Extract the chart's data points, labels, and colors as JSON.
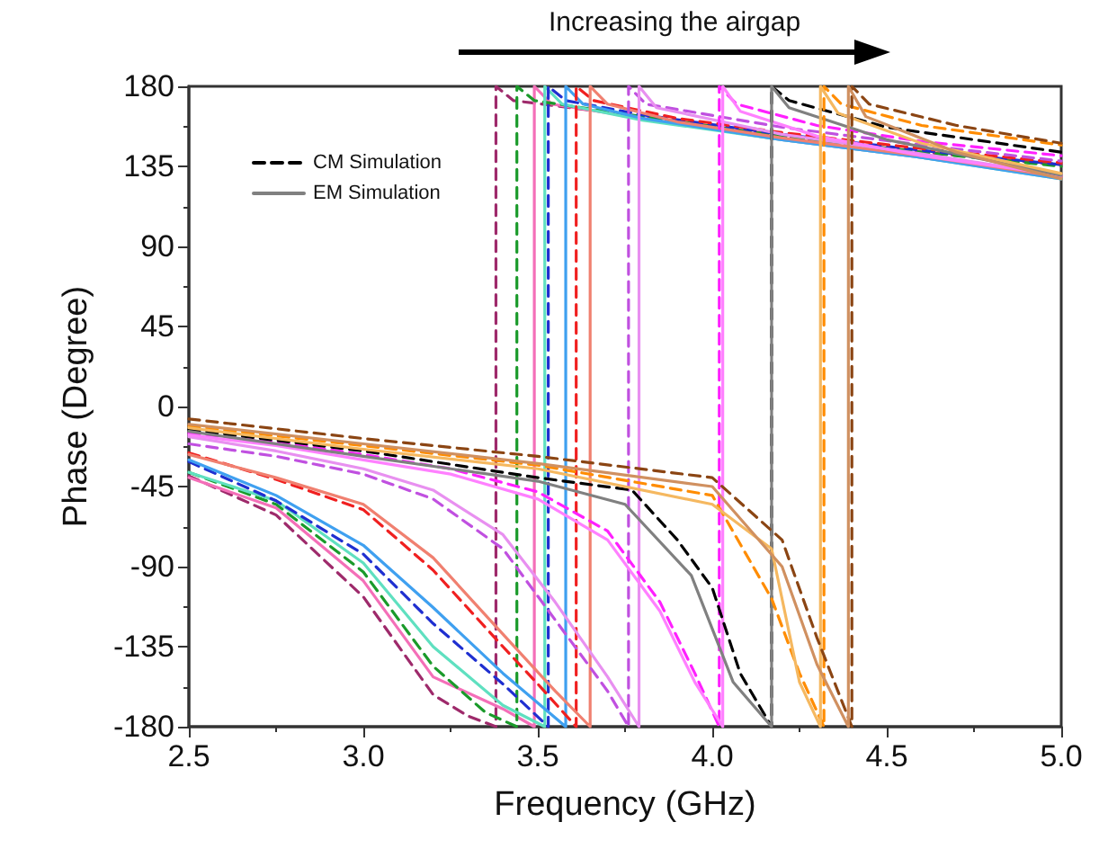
{
  "chart_data": {
    "type": "line",
    "xlabel": "Frequency (GHz)",
    "ylabel": "Phase (Degree)",
    "annotations": [
      "Increasing the airgap"
    ],
    "xlim": [
      2.5,
      5
    ],
    "xticks": [
      2.5,
      {
        "value": 3,
        "label": "3.0"
      },
      3.5,
      {
        "value": 4,
        "label": "4.0"
      },
      4.5,
      {
        "value": 5,
        "label": "5.0"
      }
    ],
    "ylim": [
      -180,
      180
    ],
    "yticks": [
      -180,
      -135,
      -90,
      -45,
      0,
      45,
      90,
      135,
      180
    ],
    "grid": false,
    "legend": "top left",
    "marker": "none",
    "series": [
      {
        "color": "#9e2a6b",
        "line_style": "dashed",
        "x": [
          2.5,
          2.75,
          3.0,
          3.2,
          3.3,
          3.38,
          3.38,
          3.43,
          3.8,
          4.2,
          4.6,
          5.0
        ],
        "values": [
          -39,
          -61,
          -107,
          -162,
          -174,
          -180,
          180,
          172,
          163,
          152,
          143,
          136
        ]
      },
      {
        "color": "#f46fb8",
        "line_style": "solid",
        "x": [
          2.5,
          2.75,
          3.0,
          3.2,
          3.4,
          3.49,
          3.49,
          3.54,
          3.8,
          4.2,
          4.6,
          5.0
        ],
        "values": [
          -40,
          -57,
          -98,
          -152,
          -170,
          -180,
          180,
          170,
          162,
          150,
          140,
          129
        ]
      },
      {
        "color": "#1a9a2a",
        "line_style": "dashed",
        "x": [
          2.5,
          2.75,
          3.0,
          3.2,
          3.35,
          3.44,
          3.44,
          3.49,
          3.8,
          4.2,
          4.6,
          5.0
        ],
        "values": [
          -37,
          -55,
          -93,
          -146,
          -172,
          -180,
          180,
          172,
          163,
          152,
          143,
          135
        ]
      },
      {
        "color": "#5fe0c0",
        "line_style": "solid",
        "x": [
          2.5,
          2.75,
          3.0,
          3.2,
          3.4,
          3.52,
          3.52,
          3.57,
          3.8,
          4.2,
          4.6,
          5.0
        ],
        "values": [
          -37,
          -53,
          -88,
          -135,
          -168,
          -180,
          180,
          170,
          161,
          150,
          140,
          128
        ]
      },
      {
        "color": "#1f2fd0",
        "line_style": "dashed",
        "x": [
          2.5,
          2.75,
          3.0,
          3.2,
          3.4,
          3.53,
          3.53,
          3.58,
          3.8,
          4.2,
          4.6,
          5.0
        ],
        "values": [
          -31,
          -53,
          -83,
          -122,
          -156,
          -180,
          180,
          172,
          164,
          153,
          144,
          136
        ]
      },
      {
        "color": "#3fa0f0",
        "line_style": "solid",
        "x": [
          2.5,
          2.75,
          3.0,
          3.2,
          3.4,
          3.58,
          3.58,
          3.63,
          3.8,
          4.2,
          4.6,
          5.0
        ],
        "values": [
          -30,
          -50,
          -78,
          -113,
          -150,
          -180,
          180,
          170,
          162,
          150,
          140,
          128
        ]
      },
      {
        "color": "#f02020",
        "line_style": "dashed",
        "x": [
          2.5,
          2.75,
          3.0,
          3.2,
          3.4,
          3.5,
          3.61,
          3.61,
          3.66,
          3.9,
          4.2,
          4.6,
          5.0
        ],
        "values": [
          -26,
          -41,
          -58,
          -92,
          -135,
          -156,
          -180,
          180,
          172,
          162,
          154,
          145,
          137
        ]
      },
      {
        "color": "#f08070",
        "line_style": "solid",
        "x": [
          2.5,
          2.75,
          3.0,
          3.2,
          3.4,
          3.55,
          3.65,
          3.65,
          3.7,
          3.9,
          4.2,
          4.6,
          5.0
        ],
        "values": [
          -27,
          -40,
          -55,
          -85,
          -128,
          -160,
          -180,
          180,
          170,
          160,
          151,
          141,
          129
        ]
      },
      {
        "color": "#c050e0",
        "line_style": "dashed",
        "x": [
          2.5,
          2.75,
          3.0,
          3.2,
          3.4,
          3.55,
          3.7,
          3.76,
          3.76,
          3.81,
          4.2,
          4.6,
          5.0
        ],
        "values": [
          -21,
          -28,
          -38,
          -52,
          -80,
          -120,
          -160,
          -180,
          180,
          170,
          157,
          147,
          138
        ]
      },
      {
        "color": "#e890f0",
        "line_style": "solid",
        "x": [
          2.5,
          2.75,
          3.0,
          3.2,
          3.4,
          3.55,
          3.7,
          3.79,
          3.79,
          3.84,
          4.2,
          4.6,
          5.0
        ],
        "values": [
          -17,
          -25,
          -35,
          -47,
          -72,
          -110,
          -152,
          -180,
          180,
          168,
          153,
          142,
          130
        ]
      },
      {
        "color": "#ff20ff",
        "line_style": "dashed",
        "x": [
          2.5,
          2.75,
          3.0,
          3.25,
          3.5,
          3.7,
          3.85,
          3.95,
          4.02,
          4.02,
          4.07,
          4.3,
          4.6,
          5.0
        ],
        "values": [
          -15,
          -20,
          -27,
          -35,
          -48,
          -70,
          -110,
          -150,
          -180,
          180,
          170,
          158,
          149,
          141
        ]
      },
      {
        "color": "#ff80ff",
        "line_style": "solid",
        "x": [
          2.5,
          2.75,
          3.0,
          3.25,
          3.5,
          3.7,
          3.85,
          3.95,
          4.03,
          4.03,
          4.08,
          4.3,
          4.6,
          5.0
        ],
        "values": [
          -16,
          -22,
          -30,
          -38,
          -52,
          -75,
          -115,
          -155,
          -180,
          180,
          166,
          152,
          141,
          130
        ]
      },
      {
        "name": "CM Simulation",
        "color": "#000000",
        "line_style": "dashed",
        "x": [
          2.5,
          3.0,
          3.5,
          3.77,
          3.9,
          4.0,
          4.08,
          4.17,
          4.17,
          4.22,
          4.5,
          5.0
        ],
        "values": [
          -13,
          -25,
          -40,
          -47,
          -75,
          -102,
          -150,
          -180,
          180,
          172,
          157,
          143
        ]
      },
      {
        "name": "EM Simulation",
        "color": "#808080",
        "line_style": "solid",
        "x": [
          2.5,
          3.0,
          3.5,
          3.75,
          3.94,
          4.06,
          4.17,
          4.17,
          4.22,
          4.5,
          5.0
        ],
        "values": [
          -14,
          -28,
          -42,
          -55,
          -95,
          -155,
          -180,
          180,
          168,
          150,
          130
        ]
      },
      {
        "color": "#ff8c00",
        "line_style": "dashed",
        "x": [
          2.5,
          3.0,
          3.5,
          4.0,
          4.17,
          4.25,
          4.32,
          4.32,
          4.37,
          4.6,
          5.0
        ],
        "values": [
          -11,
          -22,
          -33,
          -50,
          -108,
          -150,
          -180,
          180,
          170,
          158,
          147
        ]
      },
      {
        "color": "#f5b860",
        "line_style": "solid",
        "x": [
          2.5,
          3.0,
          3.5,
          4.0,
          4.17,
          4.25,
          4.31,
          4.31,
          4.36,
          4.6,
          5.0
        ],
        "values": [
          -12,
          -24,
          -35,
          -55,
          -80,
          -155,
          -180,
          180,
          165,
          148,
          131
        ]
      },
      {
        "color": "#8b4513",
        "line_style": "dashed",
        "x": [
          2.5,
          3.0,
          3.5,
          4.0,
          4.2,
          4.3,
          4.4,
          4.4,
          4.45,
          4.7,
          5.0
        ],
        "values": [
          -7,
          -18,
          -28,
          -40,
          -75,
          -130,
          -180,
          180,
          170,
          158,
          148
        ]
      },
      {
        "color": "#d09060",
        "line_style": "solid",
        "x": [
          2.5,
          3.0,
          3.5,
          4.0,
          4.2,
          4.3,
          4.39,
          4.39,
          4.44,
          4.7,
          5.0
        ],
        "values": [
          -10,
          -21,
          -32,
          -45,
          -90,
          -145,
          -180,
          180,
          163,
          143,
          128
        ]
      }
    ]
  }
}
